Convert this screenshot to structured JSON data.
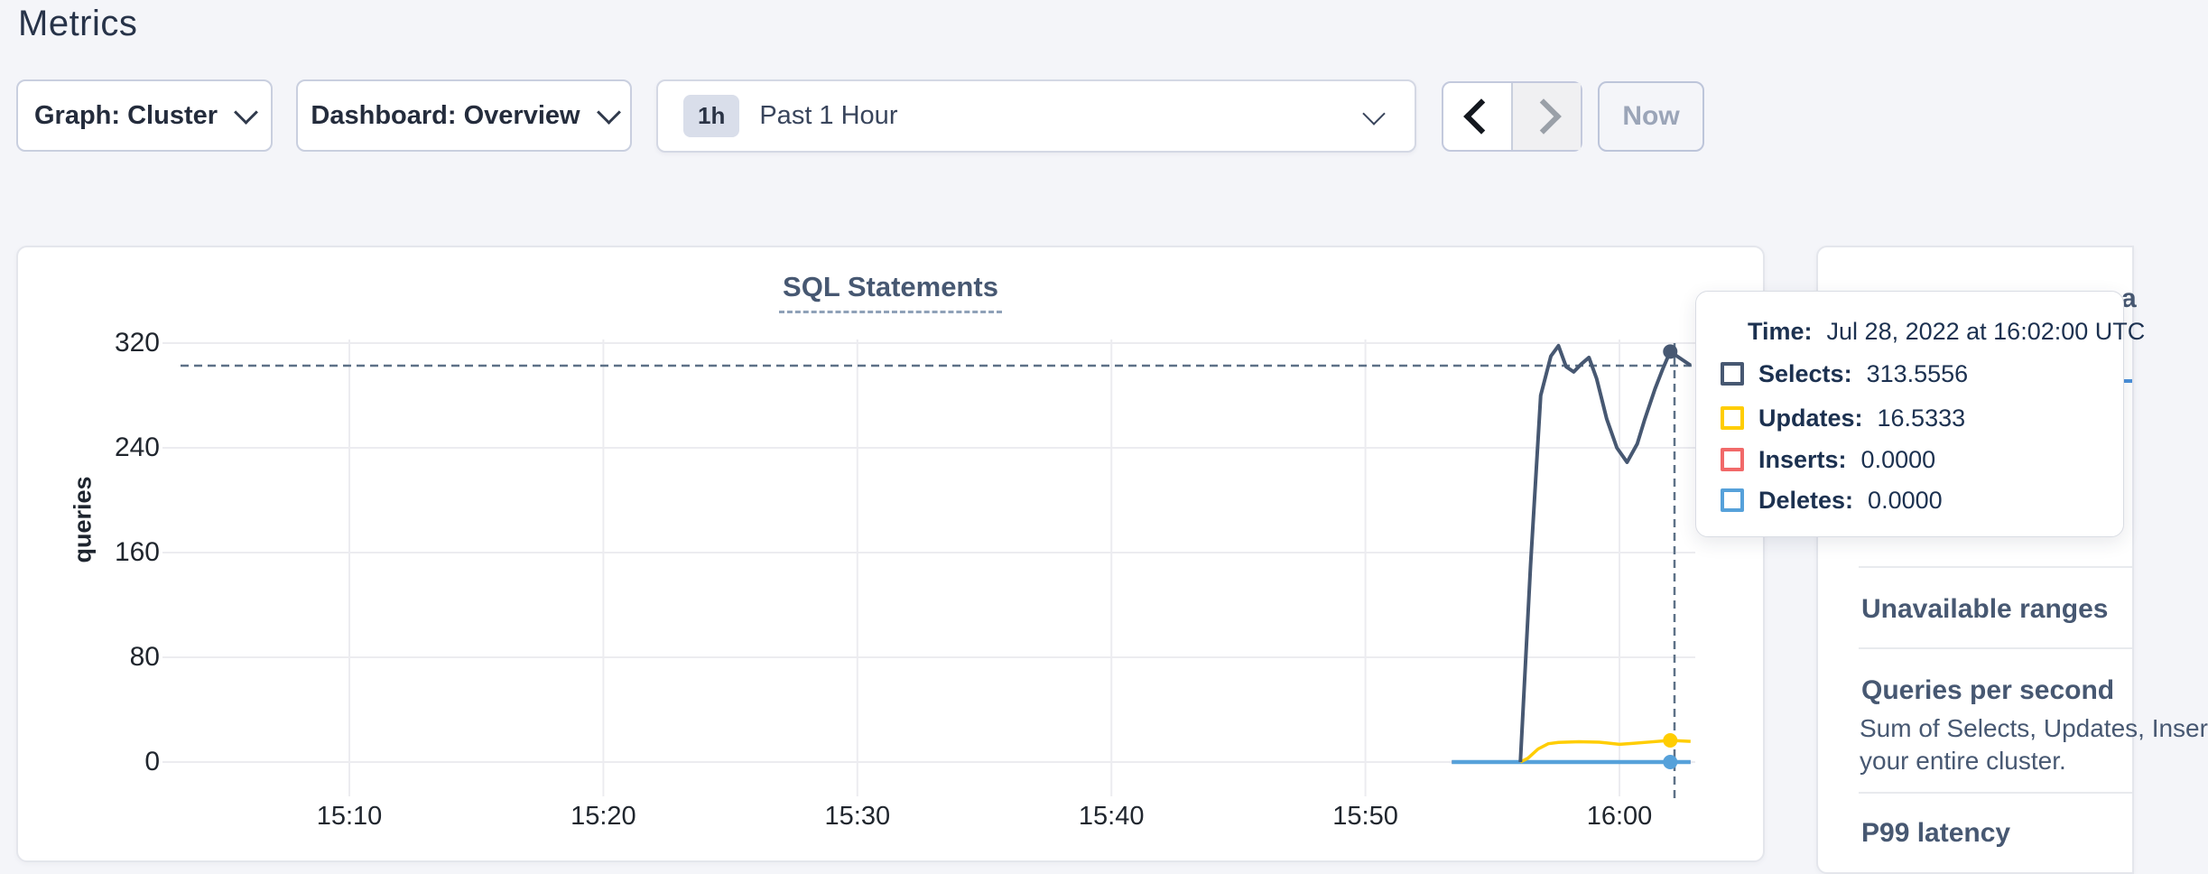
{
  "page": {
    "title": "Metrics"
  },
  "toolbar": {
    "graph_dropdown": "Graph: Cluster",
    "dashboard_dropdown": "Dashboard: Overview",
    "time_badge": "1h",
    "time_label": "Past 1 Hour",
    "now_label": "Now"
  },
  "tooltip": {
    "time_label": "Time:",
    "time_value": "Jul 28, 2022 at 16:02:00 UTC",
    "rows": [
      {
        "label": "Selects:",
        "value": "313.5556",
        "color": "#475872"
      },
      {
        "label": "Updates:",
        "value": "16.5333",
        "color": "#ffcd02"
      },
      {
        "label": "Inserts:",
        "value": "0.0000",
        "color": "#f16969"
      },
      {
        "label": "Deletes:",
        "value": "0.0000",
        "color": "#56a1da"
      }
    ]
  },
  "sidebar": {
    "partial_text": "a",
    "items": [
      {
        "heading": "Unavailable ranges",
        "desc_lines": []
      },
      {
        "heading": "Queries per second",
        "desc_lines": [
          "Sum of Selects, Updates, Inser",
          "your entire cluster."
        ]
      },
      {
        "heading": "P99 latency",
        "desc_lines": []
      }
    ]
  },
  "chart_data": {
    "type": "line",
    "title": "SQL Statements",
    "ylabel": "queries",
    "xlabel": "",
    "grid": true,
    "ylim": [
      0,
      320
    ],
    "y_ticks": [
      0,
      80,
      160,
      240,
      320
    ],
    "x_ticks": [
      {
        "t": 10,
        "label": "15:10"
      },
      {
        "t": 20,
        "label": "15:20"
      },
      {
        "t": 30,
        "label": "15:30"
      },
      {
        "t": 40,
        "label": "15:40"
      },
      {
        "t": 50,
        "label": "15:50"
      },
      {
        "t": 60,
        "label": "16:00"
      }
    ],
    "x_unit": "minutes after 15:00 UTC",
    "series": [
      {
        "name": "Inserts",
        "color": "#f16969",
        "width": 4,
        "points": [
          [
            53.4,
            0
          ],
          [
            62.8,
            0
          ]
        ]
      },
      {
        "name": "Deletes",
        "color": "#56a1da",
        "width": 4.5,
        "points": [
          [
            53.4,
            0
          ],
          [
            62.8,
            0
          ]
        ]
      },
      {
        "name": "Updates",
        "color": "#ffcd02",
        "width": 3.5,
        "points": [
          [
            56.1,
            0
          ],
          [
            56.4,
            3
          ],
          [
            56.8,
            10
          ],
          [
            57.2,
            14
          ],
          [
            57.6,
            15
          ],
          [
            58.4,
            15.5
          ],
          [
            59.2,
            15.2
          ],
          [
            60.0,
            13.5
          ],
          [
            60.5,
            14.2
          ],
          [
            61.2,
            15.3
          ],
          [
            62.0,
            16.5333
          ],
          [
            62.8,
            15.8
          ]
        ]
      },
      {
        "name": "Selects",
        "color": "#475872",
        "width": 4,
        "points": [
          [
            56.1,
            0
          ],
          [
            56.5,
            150
          ],
          [
            56.9,
            280
          ],
          [
            57.3,
            310
          ],
          [
            57.6,
            318
          ],
          [
            57.9,
            302
          ],
          [
            58.2,
            298
          ],
          [
            58.5,
            304
          ],
          [
            58.8,
            309
          ],
          [
            59.1,
            293
          ],
          [
            59.5,
            262
          ],
          [
            59.9,
            240
          ],
          [
            60.3,
            229
          ],
          [
            60.7,
            243
          ],
          [
            61.0,
            262
          ],
          [
            61.4,
            285
          ],
          [
            61.7,
            300
          ],
          [
            62.0,
            313.5556
          ],
          [
            62.8,
            303
          ]
        ]
      }
    ],
    "hover": {
      "t": 62,
      "time": "16:02:00",
      "points": [
        {
          "series": "Selects",
          "v": 313.5556,
          "color": "#475872"
        },
        {
          "series": "Updates",
          "v": 16.5333,
          "color": "#ffcd02"
        },
        {
          "series": "Deletes",
          "v": 0,
          "color": "#56a1da"
        }
      ],
      "guide_color": "#5d7187"
    },
    "legend_position": "tooltip",
    "colors": {
      "grid": "#ececf0",
      "tick_text": "#20262e"
    }
  }
}
